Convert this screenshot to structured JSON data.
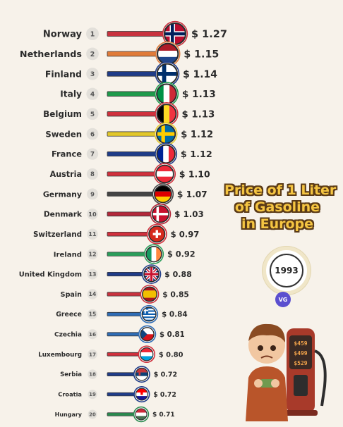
{
  "chart_data": {
    "type": "bar",
    "title_lines": [
      "Price of 1 Liter",
      "of Gasoline",
      "in Europe"
    ],
    "year": "1993",
    "currency_prefix": "$ ",
    "categories": [
      "Norway",
      "Netherlands",
      "Finland",
      "Italy",
      "Belgium",
      "Sweden",
      "France",
      "Austria",
      "Germany",
      "Denmark",
      "Switzerland",
      "Ireland",
      "United Kingdom",
      "Spain",
      "Greece",
      "Czechia",
      "Luxembourg",
      "Serbia",
      "Croatia",
      "Hungary"
    ],
    "ranks": [
      "1",
      "2",
      "3",
      "4",
      "5",
      "6",
      "7",
      "8",
      "9",
      "10",
      "11",
      "12",
      "13",
      "14",
      "15",
      "16",
      "17",
      "18",
      "19",
      "20"
    ],
    "values": [
      1.27,
      1.15,
      1.14,
      1.13,
      1.13,
      1.12,
      1.12,
      1.1,
      1.07,
      1.03,
      0.97,
      0.92,
      0.88,
      0.85,
      0.84,
      0.81,
      0.8,
      0.72,
      0.72,
      0.71
    ],
    "value_labels": [
      "$ 1.27",
      "$ 1.15",
      "$ 1.14",
      "$ 1.13",
      "$ 1.13",
      "$ 1.12",
      "$ 1.12",
      "$ 1.10",
      "$ 1.07",
      "$ 1.03",
      "$ 0.97",
      "$ 0.92",
      "$ 0.88",
      "$ 0.85",
      "$ 0.84",
      "$ 0.81",
      "$ 0.80",
      "$ 0.72",
      "$ 0.72",
      "$ 0.71"
    ],
    "bar_colors": [
      "#c8323e",
      "#e07b39",
      "#1f3c88",
      "#1e9a4b",
      "#d0303c",
      "#e2c72a",
      "#1f3c88",
      "#d0303c",
      "#444444",
      "#b3283a",
      "#d0303c",
      "#2a9d5a",
      "#1f3c88",
      "#c8323e",
      "#2e6cb5",
      "#2e6cb5",
      "#d0303c",
      "#1f3c88",
      "#1f3c88",
      "#2a8a4f"
    ],
    "flags": [
      "norway-flag",
      "netherlands-flag",
      "finland-flag",
      "italy-flag",
      "belgium-flag",
      "sweden-flag",
      "france-flag",
      "austria-flag",
      "germany-flag",
      "denmark-flag",
      "switzerland-flag",
      "ireland-flag",
      "united-kingdom-flag",
      "spain-flag",
      "greece-flag",
      "czechia-flag",
      "luxembourg-flag",
      "serbia-flag",
      "croatia-flag",
      "hungary-flag"
    ]
  },
  "branding": {
    "logo_text": "VG"
  },
  "pump_prices": [
    "$459",
    "$499",
    "$529"
  ]
}
